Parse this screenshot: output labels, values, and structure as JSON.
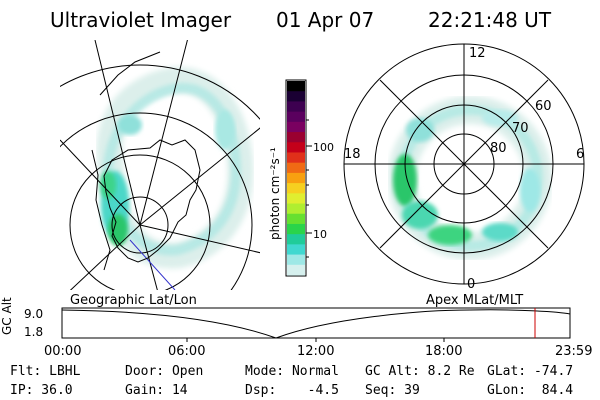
{
  "header": {
    "instrument": "Ultraviolet Imager",
    "date": "01 Apr 07",
    "time": "22:21:48 UT"
  },
  "colorbar": {
    "unit_label": "photon cm⁻²s⁻¹",
    "ticks": [
      "100",
      "10"
    ],
    "colors": [
      "#000000",
      "#1a0033",
      "#3d0050",
      "#5a005e",
      "#7a0060",
      "#9a0030",
      "#c4001a",
      "#e0301a",
      "#f06a14",
      "#f8a010",
      "#f6d020",
      "#e0ee30",
      "#b0ee30",
      "#66e030",
      "#2ad44a",
      "#20cc9a",
      "#40d8d0",
      "#9ee8e6",
      "#d6f0ee"
    ]
  },
  "left_panel": {
    "caption": "Geographic Lat/Lon"
  },
  "right_panel": {
    "caption": "Apex MLat/MLT",
    "mlt_labels": {
      "top": "12",
      "bottom": "0",
      "left": "18",
      "right": "6"
    },
    "lat_labels": [
      "60",
      "70",
      "80"
    ]
  },
  "timeline": {
    "axis_label": "GC Alt",
    "y_ticks": [
      "9.0",
      "1.8"
    ],
    "x_ticks": [
      "00:00",
      "06:00",
      "12:00",
      "18:00",
      "23:59"
    ]
  },
  "info": {
    "row1": [
      "Flt: LBHL",
      "Door: Open",
      "Mode: Normal",
      "GC Alt: 8.2 Re",
      "GLat: -74.7"
    ],
    "row2": [
      "IP: 36.0",
      "Gain: 14",
      "Dsp:    -4.5",
      "Seq: 39",
      "GLon:  84.4"
    ]
  }
}
